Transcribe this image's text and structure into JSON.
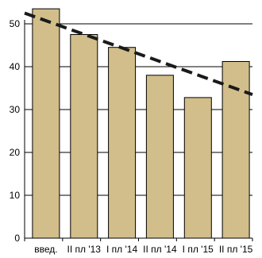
{
  "chart_data": {
    "type": "bar",
    "title": "",
    "xlabel": "",
    "ylabel": "",
    "categories": [
      "введ.",
      "II пл '13",
      "I пл '14",
      "II пл '14",
      "I пл '15",
      "II пл '15"
    ],
    "values": [
      53.5,
      47.5,
      44.5,
      38,
      32.8,
      41.2
    ],
    "ylim": [
      0,
      50
    ],
    "yticks": [
      0,
      10,
      20,
      30,
      40,
      50
    ],
    "grid": true,
    "legend": "none",
    "trend_line": {
      "style": "dashed",
      "start": 52.5,
      "end": 33.5
    },
    "colors": {
      "bar_fill": "#D2BE8A",
      "bar_stroke": "#000000",
      "grid": "#000000",
      "trend": "#1a1a1a"
    }
  }
}
